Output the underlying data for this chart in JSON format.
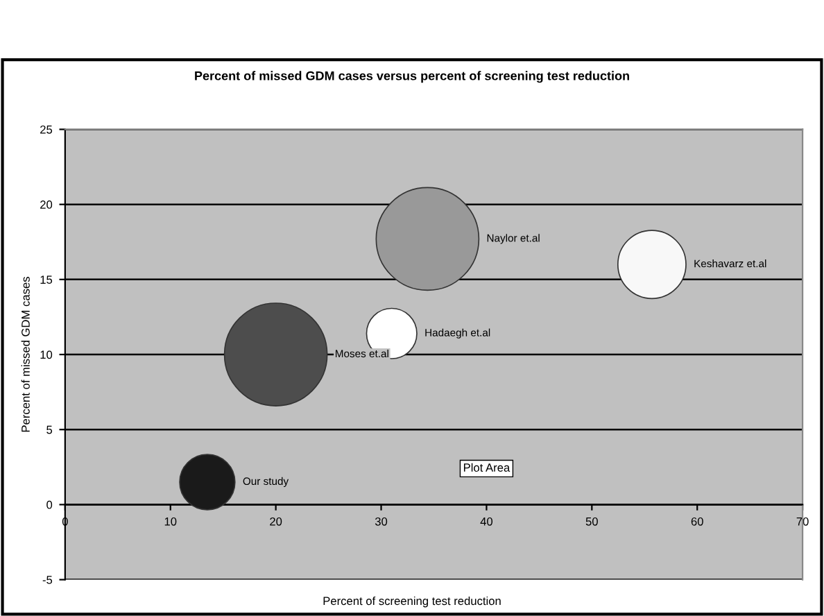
{
  "chart_data": {
    "type": "bubble",
    "title": "Percent of missed GDM cases versus percent of screening test reduction",
    "xlabel": "Percent of screening test reduction",
    "ylabel": "Percent of missed GDM cases",
    "series": [
      {
        "name": "Our study",
        "color": "#1a1a1a",
        "x": [
          13.5
        ],
        "values": [
          1.5
        ],
        "sizes": [
          0.29
        ]
      },
      {
        "name": "Moses et.al",
        "color": "#4d4d4d",
        "x": [
          20
        ],
        "values": [
          10
        ],
        "sizes": [
          1
        ]
      },
      {
        "name": "Hadaegh et.al",
        "color": "#ffffff",
        "x": [
          31
        ],
        "values": [
          11.4
        ],
        "sizes": [
          0.24
        ]
      },
      {
        "name": "Naylor et.al",
        "color": "#999999",
        "x": [
          34.4
        ],
        "values": [
          17.7
        ],
        "sizes": [
          1
        ]
      },
      {
        "name": "Keshavarz et.al",
        "color": "#f8f8f8",
        "x": [
          55.7
        ],
        "values": [
          16
        ],
        "sizes": [
          0.44
        ]
      }
    ],
    "annotations": [
      {
        "text": "Plot Area",
        "x": 40,
        "y": 2.4
      }
    ],
    "xlim": [
      0,
      70
    ],
    "xticks": [
      0,
      10,
      20,
      30,
      40,
      50,
      60,
      70
    ],
    "ylim": [
      -5,
      25
    ],
    "yticks": [
      -5,
      0,
      5,
      10,
      15,
      20,
      25
    ],
    "grid": "y",
    "legend": false
  }
}
